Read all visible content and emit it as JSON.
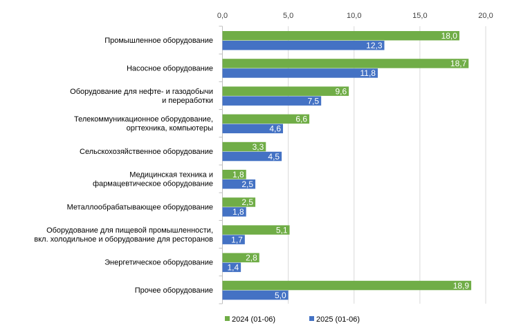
{
  "chart_data": {
    "type": "bar",
    "orientation": "horizontal",
    "categories": [
      [
        "Промышленное оборудование"
      ],
      [
        "Насосное оборудование"
      ],
      [
        "Оборудование для нефте- и газодобычи",
        "и переработки"
      ],
      [
        "Телекоммуникационное оборудование,",
        "оргтехника, компьютеры"
      ],
      [
        "Сельскохозяйственное оборудование"
      ],
      [
        "Медицинская техника и",
        "фармацевтическое оборудование"
      ],
      [
        "Металлообрабатывающее оборудование"
      ],
      [
        "Оборудование для пищевой промышленности,",
        "вкл. холодильное и оборудование для ресторанов"
      ],
      [
        "Энергетическое оборудование"
      ],
      [
        "Прочее оборудование"
      ]
    ],
    "series": [
      {
        "name": "2024 (01-06)",
        "color": "#70AD47",
        "values": [
          18.0,
          18.7,
          9.6,
          6.6,
          3.3,
          1.8,
          2.5,
          5.1,
          2.8,
          18.9
        ]
      },
      {
        "name": "2025 (01-06)",
        "color": "#4472C4",
        "values": [
          12.3,
          11.8,
          7.5,
          4.6,
          4.5,
          2.5,
          1.8,
          1.7,
          1.4,
          5.0
        ]
      }
    ],
    "xlim": [
      0,
      20
    ],
    "xticks": [
      "0,0",
      "5,0",
      "10,0",
      "15,0",
      "20,0"
    ],
    "tick_values": [
      0,
      5,
      10,
      15,
      20
    ],
    "axis_position": "top",
    "grid": true,
    "legend": "bottom",
    "data_labels": true,
    "decimal_separator": ","
  }
}
